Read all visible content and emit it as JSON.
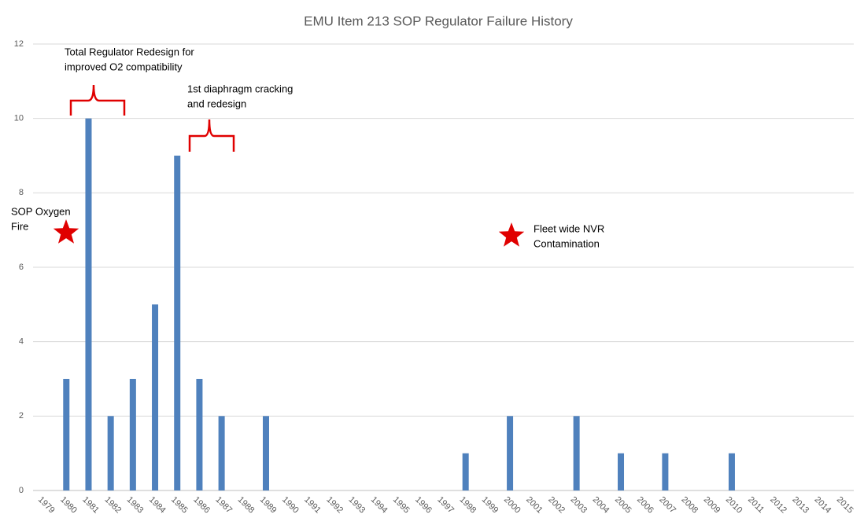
{
  "chart_data": {
    "type": "bar",
    "title": "EMU Item 213 SOP Regulator Failure History",
    "categories": [
      "1979",
      "1980",
      "1981",
      "1982",
      "1983",
      "1984",
      "1985",
      "1986",
      "1987",
      "1988",
      "1989",
      "1990",
      "1991",
      "1992",
      "1993",
      "1994",
      "1995",
      "1996",
      "1997",
      "1998",
      "1999",
      "2000",
      "2001",
      "2002",
      "2003",
      "2004",
      "2005",
      "2006",
      "2007",
      "2008",
      "2009",
      "2010",
      "2011",
      "2012",
      "2013",
      "2014",
      "2015"
    ],
    "values": [
      0,
      3,
      10,
      2,
      3,
      5,
      9,
      3,
      2,
      0,
      2,
      0,
      0,
      0,
      0,
      0,
      0,
      0,
      0,
      1,
      0,
      2,
      0,
      0,
      2,
      0,
      1,
      0,
      1,
      0,
      0,
      1,
      0,
      0,
      0,
      0,
      0
    ],
    "color": "#4f81bd",
    "ylim": [
      0,
      12
    ],
    "yticks": [
      0,
      2,
      4,
      6,
      8,
      10,
      12
    ],
    "grid": true,
    "annotations": [
      {
        "lines": [
          "Total Regulator Redesign for",
          "improved O2 compatibility"
        ]
      },
      {
        "lines": [
          "1st diaphragm cracking",
          "and redesign"
        ]
      },
      {
        "lines": [
          "SOP Oxygen",
          "Fire"
        ]
      },
      {
        "lines": [
          "Fleet wide NVR",
          "Contamination"
        ]
      }
    ]
  }
}
